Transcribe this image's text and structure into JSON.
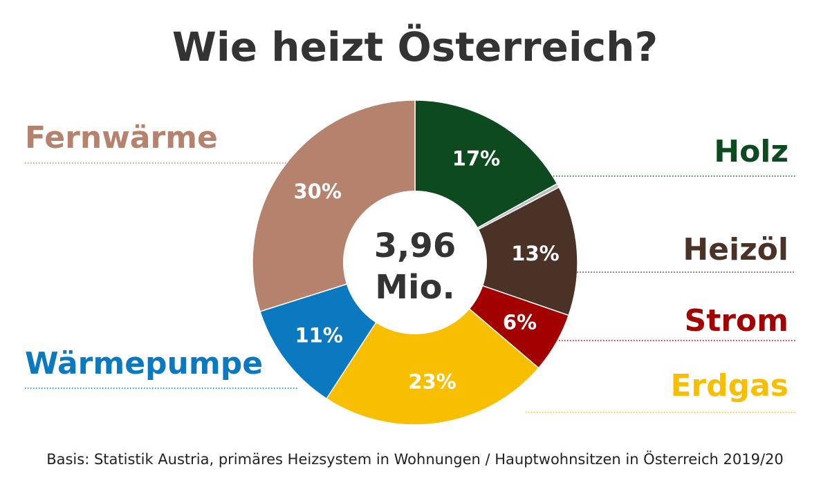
{
  "chart_data": {
    "type": "pie",
    "title": "Wie heizt Österreich?",
    "center_value": "3,96",
    "center_unit": "Mio.",
    "source": "Basis: Statistik Austria, primäres Heizsystem in Wohnungen / Hauptwohnsitzen in Österreich 2019/20",
    "slices": [
      {
        "name": "Holz",
        "value": 17,
        "label": "17%",
        "color": "#0d4a1f",
        "label_side": "right"
      },
      {
        "name": "Other",
        "value": 0.4,
        "label": "",
        "color": "#bdbdbd",
        "label_side": "none"
      },
      {
        "name": "Heizöl",
        "value": 13,
        "label": "13%",
        "color": "#4a3227",
        "label_side": "right"
      },
      {
        "name": "Strom",
        "value": 6,
        "label": "6%",
        "color": "#a30000",
        "label_side": "right"
      },
      {
        "name": "Erdgas",
        "value": 23,
        "label": "23%",
        "color": "#f7bf00",
        "label_side": "right"
      },
      {
        "name": "Wärmepumpe",
        "value": 11,
        "label": "11%",
        "color": "#0b79bf",
        "label_side": "left"
      },
      {
        "name": "Fernwärme",
        "value": 30,
        "label": "30%",
        "color": "#b5826e",
        "label_side": "left"
      }
    ]
  }
}
